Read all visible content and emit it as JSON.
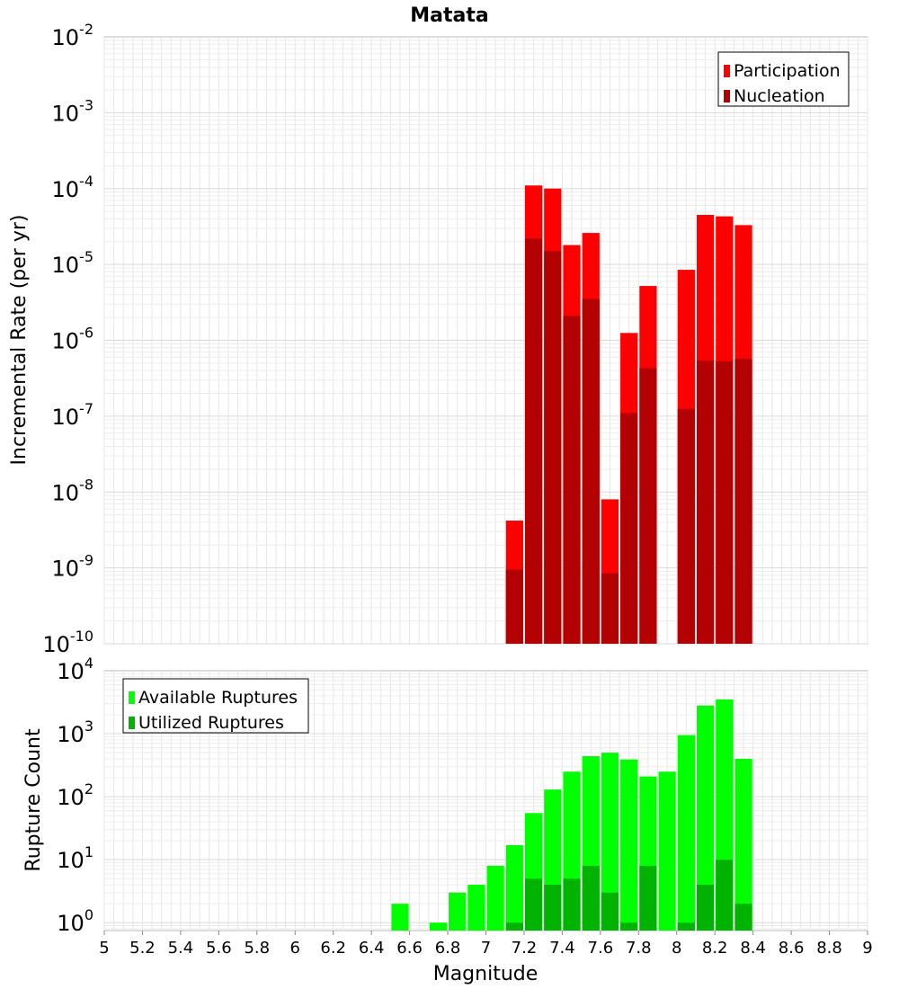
{
  "chart_data": [
    {
      "type": "bar",
      "title": "Matata",
      "ylabel": "Incremental Rate (per yr)",
      "xlabel": "",
      "yscale": "log",
      "ylim": [
        1e-10,
        0.01
      ],
      "xlim": [
        5,
        9
      ],
      "grid": true,
      "legend": "top-right",
      "bin_width": 0.1,
      "y_tick_exponents": [
        "-10",
        "-9",
        "-8",
        "-7",
        "-6",
        "-5",
        "-4",
        "-3",
        "-2"
      ],
      "x": [
        7.15,
        7.25,
        7.35,
        7.45,
        7.55,
        7.65,
        7.75,
        7.85,
        8.05,
        8.15,
        8.25,
        8.35
      ],
      "series": [
        {
          "name": "Participation",
          "color": "#ff0000",
          "values": [
            4.2e-09,
            0.00011,
            0.0001,
            1.8e-05,
            2.6e-05,
            8e-09,
            1.25e-06,
            5.2e-06,
            8.5e-06,
            4.5e-05,
            4.3e-05,
            3.3e-05
          ]
        },
        {
          "name": "Nucleation",
          "color": "#b30000",
          "values": [
            9.5e-10,
            2.2e-05,
            1.5e-05,
            2.1e-06,
            3.5e-06,
            8.5e-10,
            1.1e-07,
            4.3e-07,
            1.25e-07,
            5.4e-07,
            5.3e-07,
            5.7e-07
          ]
        }
      ]
    },
    {
      "type": "bar",
      "title": "",
      "ylabel": "Rupture Count",
      "xlabel": "Magnitude",
      "yscale": "log",
      "ylim": [
        0.75,
        10000
      ],
      "xlim": [
        5,
        9
      ],
      "grid": true,
      "legend": "top-left",
      "bin_width": 0.1,
      "y_tick_exponents": [
        "0",
        "1",
        "2",
        "3",
        "4"
      ],
      "x_ticks": [
        "5",
        "5.2",
        "5.4",
        "5.6",
        "5.8",
        "6",
        "6.2",
        "6.4",
        "6.6",
        "6.8",
        "7",
        "7.2",
        "7.4",
        "7.6",
        "7.8",
        "8",
        "8.2",
        "8.4",
        "8.6",
        "8.8",
        "9"
      ],
      "x": [
        6.55,
        6.75,
        6.85,
        6.95,
        7.05,
        7.15,
        7.25,
        7.35,
        7.45,
        7.55,
        7.65,
        7.75,
        7.85,
        7.95,
        8.05,
        8.15,
        8.25,
        8.35
      ],
      "series": [
        {
          "name": "Available Ruptures",
          "color": "#00ff00",
          "values": [
            2,
            1,
            3,
            4,
            8,
            17,
            55,
            130,
            250,
            440,
            500,
            390,
            210,
            250,
            950,
            2800,
            3500,
            400
          ]
        },
        {
          "name": "Utilized Ruptures",
          "color": "#00b300",
          "values": [
            0,
            0,
            0,
            0,
            0,
            1,
            5,
            4,
            5,
            8,
            3,
            1,
            8,
            0,
            1,
            4,
            10,
            2
          ]
        }
      ]
    }
  ]
}
